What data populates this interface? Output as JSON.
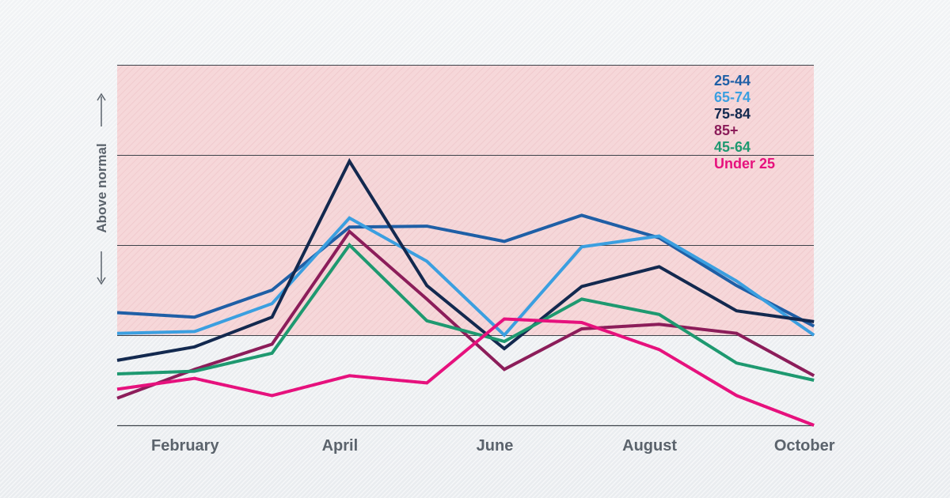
{
  "chart_data": {
    "type": "line",
    "ylabel": "Above normal",
    "x_labels": [
      "February",
      "April",
      "June",
      "August",
      "October"
    ],
    "x_points": [
      "",
      "February",
      "",
      "April",
      "",
      "June",
      "",
      "August",
      "",
      "October"
    ],
    "shaded_band": true,
    "grid": true,
    "legend_position": "top-right",
    "series": [
      {
        "name": "25-44",
        "color": "#1f5fa6",
        "values": [
          1.25,
          1.2,
          1.5,
          2.2,
          2.21,
          2.04,
          2.33,
          2.08,
          1.55,
          1.1
        ]
      },
      {
        "name": "65-74",
        "color": "#3b9fe0",
        "values": [
          1.02,
          1.04,
          1.35,
          2.3,
          1.82,
          1.0,
          1.98,
          2.1,
          1.6,
          1.0
        ]
      },
      {
        "name": "75-84",
        "color": "#13294f",
        "values": [
          0.72,
          0.87,
          1.2,
          2.93,
          1.55,
          0.85,
          1.54,
          1.76,
          1.27,
          1.15
        ]
      },
      {
        "name": "85+",
        "color": "#8c1d5a",
        "values": [
          0.3,
          0.62,
          0.9,
          2.15,
          1.4,
          0.62,
          1.07,
          1.12,
          1.02,
          0.55
        ]
      },
      {
        "name": "45-64",
        "color": "#1e9970",
        "values": [
          0.57,
          0.6,
          0.8,
          2.0,
          1.16,
          0.93,
          1.4,
          1.23,
          0.69,
          0.5
        ]
      },
      {
        "name": "Under 25",
        "color": "#e6117d",
        "values": [
          0.4,
          0.52,
          0.33,
          0.55,
          0.47,
          1.18,
          1.14,
          0.84,
          0.33,
          0.0
        ]
      }
    ]
  }
}
